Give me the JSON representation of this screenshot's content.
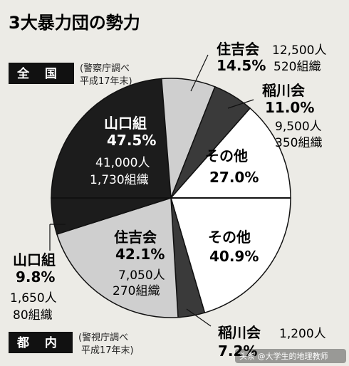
{
  "title": "3大暴力団の勢力",
  "watermark": "头条 @大学生的地理教师",
  "chart_data": [
    {
      "type": "pie",
      "label": "全 国",
      "source": [
        "(警察庁調べ",
        "平成17年末)"
      ],
      "slices": [
        {
          "name": "山口組",
          "percent": 47.5,
          "members": "41,000人",
          "groups": "1,730組織",
          "color": "#1c1c1c"
        },
        {
          "name": "住吉会",
          "percent": 14.5,
          "members": "12,500人",
          "groups": "520組織",
          "color": "#cfcfcf"
        },
        {
          "name": "稲川会",
          "percent": 11.0,
          "members": "9,500人",
          "groups": "350組織",
          "color": "#3a3a3a"
        },
        {
          "name": "その他",
          "percent": 27.0,
          "members": "",
          "groups": "",
          "color": "#ffffff"
        }
      ],
      "display": {
        "山口組": "47.5%",
        "住吉会": "14.5%",
        "稲川会": "11.0%",
        "その他": "27.0%"
      }
    },
    {
      "type": "pie",
      "label": "都 内",
      "source": [
        "(警視庁調べ",
        "平成17年末)"
      ],
      "slices": [
        {
          "name": "その他",
          "percent": 40.9,
          "members": "",
          "groups": "",
          "color": "#ffffff"
        },
        {
          "name": "稲川会",
          "percent": 7.2,
          "members": "1,200人",
          "groups": "",
          "color": "#3a3a3a"
        },
        {
          "name": "住吉会",
          "percent": 42.1,
          "members": "7,050人",
          "groups": "270組織",
          "color": "#cfcfcf"
        },
        {
          "name": "山口組",
          "percent": 9.8,
          "members": "1,650人",
          "groups": "80組織",
          "color": "#1c1c1c"
        }
      ],
      "display": {
        "その他": "40.9%",
        "稲川会": "7.2%",
        "住吉会": "42.1%",
        "山口組": "9.8%"
      }
    }
  ]
}
